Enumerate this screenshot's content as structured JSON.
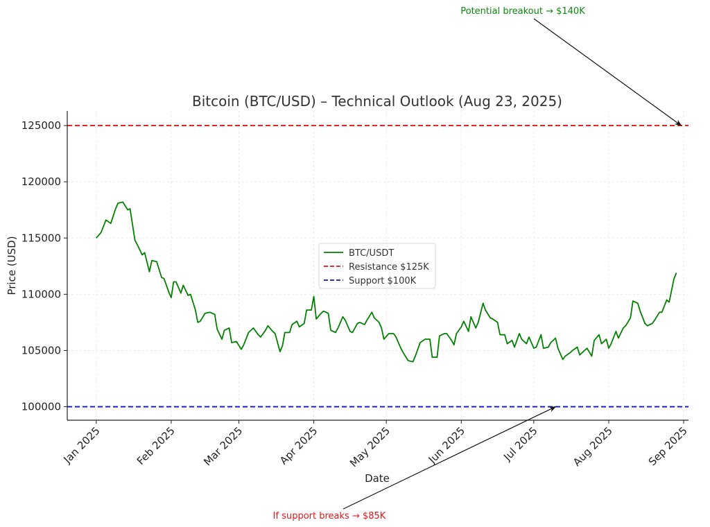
{
  "chart_data": {
    "type": "line",
    "title": "Bitcoin (BTC/USD) – Technical Outlook (Aug 23, 2025)",
    "xlabel": "Date",
    "ylabel": "Price (USD)",
    "x_ticks": [
      "Jan 2025",
      "Feb 2025",
      "Mar 2025",
      "Apr 2025",
      "May 2025",
      "Jun 2025",
      "Jul 2025",
      "Aug 2025",
      "Sep 2025"
    ],
    "x_tick_dates": [
      "2025-01-01",
      "2025-02-01",
      "2025-03-01",
      "2025-04-01",
      "2025-05-01",
      "2025-06-01",
      "2025-07-01",
      "2025-08-01",
      "2025-09-01"
    ],
    "xlim": [
      "2024-12-20",
      "2025-09-03"
    ],
    "y_ticks": [
      100000,
      105000,
      110000,
      115000,
      120000,
      125000
    ],
    "ylim": [
      98800,
      126300
    ],
    "grid": true,
    "legend_position": "center",
    "series": [
      {
        "name": "BTC/USDT",
        "color": "#008000",
        "style": "solid",
        "points": [
          [
            "2025-01-01",
            115000
          ],
          [
            "2025-01-03",
            115500
          ],
          [
            "2025-01-05",
            116600
          ],
          [
            "2025-01-07",
            116300
          ],
          [
            "2025-01-09",
            117600
          ],
          [
            "2025-01-10",
            118100
          ],
          [
            "2025-01-12",
            118200
          ],
          [
            "2025-01-14",
            117500
          ],
          [
            "2025-01-15",
            117600
          ],
          [
            "2025-01-17",
            114800
          ],
          [
            "2025-01-18",
            114400
          ],
          [
            "2025-01-20",
            113500
          ],
          [
            "2025-01-21",
            113700
          ],
          [
            "2025-01-23",
            112000
          ],
          [
            "2025-01-24",
            113000
          ],
          [
            "2025-01-26",
            112900
          ],
          [
            "2025-01-28",
            111500
          ],
          [
            "2025-01-29",
            111400
          ],
          [
            "2025-01-31",
            110200
          ],
          [
            "2025-02-01",
            109700
          ],
          [
            "2025-02-02",
            111100
          ],
          [
            "2025-02-03",
            111100
          ],
          [
            "2025-02-05",
            110100
          ],
          [
            "2025-02-06",
            110800
          ],
          [
            "2025-02-08",
            109900
          ],
          [
            "2025-02-09",
            110000
          ],
          [
            "2025-02-11",
            108600
          ],
          [
            "2025-02-12",
            107500
          ],
          [
            "2025-02-13",
            107600
          ],
          [
            "2025-02-15",
            108300
          ],
          [
            "2025-02-17",
            108400
          ],
          [
            "2025-02-19",
            108200
          ],
          [
            "2025-02-20",
            106900
          ],
          [
            "2025-02-22",
            106000
          ],
          [
            "2025-02-23",
            106800
          ],
          [
            "2025-02-25",
            107000
          ],
          [
            "2025-02-26",
            105700
          ],
          [
            "2025-02-28",
            105800
          ],
          [
            "2025-03-02",
            105100
          ],
          [
            "2025-03-03",
            105500
          ],
          [
            "2025-03-05",
            106600
          ],
          [
            "2025-03-07",
            107000
          ],
          [
            "2025-03-09",
            106400
          ],
          [
            "2025-03-10",
            106200
          ],
          [
            "2025-03-12",
            106800
          ],
          [
            "2025-03-13",
            107200
          ],
          [
            "2025-03-15",
            106700
          ],
          [
            "2025-03-16",
            106500
          ],
          [
            "2025-03-18",
            104900
          ],
          [
            "2025-03-19",
            105400
          ],
          [
            "2025-03-20",
            106600
          ],
          [
            "2025-03-22",
            106600
          ],
          [
            "2025-03-23",
            107300
          ],
          [
            "2025-03-25",
            107600
          ],
          [
            "2025-03-26",
            107100
          ],
          [
            "2025-03-28",
            107400
          ],
          [
            "2025-03-29",
            108600
          ],
          [
            "2025-03-31",
            108600
          ],
          [
            "2025-04-01",
            109800
          ],
          [
            "2025-04-02",
            107800
          ],
          [
            "2025-04-04",
            108300
          ],
          [
            "2025-04-05",
            108500
          ],
          [
            "2025-04-07",
            108300
          ],
          [
            "2025-04-08",
            106800
          ],
          [
            "2025-04-10",
            106600
          ],
          [
            "2025-04-11",
            107000
          ],
          [
            "2025-04-13",
            108000
          ],
          [
            "2025-04-14",
            107700
          ],
          [
            "2025-04-16",
            106700
          ],
          [
            "2025-04-17",
            106600
          ],
          [
            "2025-04-19",
            107400
          ],
          [
            "2025-04-20",
            107500
          ],
          [
            "2025-04-22",
            107300
          ],
          [
            "2025-04-23",
            107700
          ],
          [
            "2025-04-25",
            108400
          ],
          [
            "2025-04-26",
            107900
          ],
          [
            "2025-04-28",
            107500
          ],
          [
            "2025-04-29",
            107000
          ],
          [
            "2025-04-30",
            106000
          ],
          [
            "2025-05-02",
            106500
          ],
          [
            "2025-05-04",
            106500
          ],
          [
            "2025-05-05",
            106200
          ],
          [
            "2025-05-07",
            105200
          ],
          [
            "2025-05-08",
            104800
          ],
          [
            "2025-05-10",
            104100
          ],
          [
            "2025-05-12",
            104000
          ],
          [
            "2025-05-13",
            104500
          ],
          [
            "2025-05-15",
            105700
          ],
          [
            "2025-05-17",
            106000
          ],
          [
            "2025-05-19",
            106000
          ],
          [
            "2025-05-20",
            104400
          ],
          [
            "2025-05-22",
            104400
          ],
          [
            "2025-05-23",
            106300
          ],
          [
            "2025-05-25",
            106500
          ],
          [
            "2025-05-26",
            106500
          ],
          [
            "2025-05-28",
            105900
          ],
          [
            "2025-05-29",
            105500
          ],
          [
            "2025-05-30",
            106500
          ],
          [
            "2025-06-01",
            107100
          ],
          [
            "2025-06-02",
            107600
          ],
          [
            "2025-06-04",
            106700
          ],
          [
            "2025-06-05",
            108000
          ],
          [
            "2025-06-07",
            107000
          ],
          [
            "2025-06-08",
            107500
          ],
          [
            "2025-06-10",
            109200
          ],
          [
            "2025-06-11",
            108600
          ],
          [
            "2025-06-13",
            107900
          ],
          [
            "2025-06-14",
            107800
          ],
          [
            "2025-06-16",
            107500
          ],
          [
            "2025-06-17",
            106400
          ],
          [
            "2025-06-19",
            106400
          ],
          [
            "2025-06-20",
            105600
          ],
          [
            "2025-06-22",
            105900
          ],
          [
            "2025-06-23",
            105300
          ],
          [
            "2025-06-25",
            106500
          ],
          [
            "2025-06-26",
            106000
          ],
          [
            "2025-06-28",
            105600
          ],
          [
            "2025-06-29",
            106200
          ],
          [
            "2025-07-01",
            105200
          ],
          [
            "2025-07-02",
            105300
          ],
          [
            "2025-07-04",
            106400
          ],
          [
            "2025-07-05",
            105200
          ],
          [
            "2025-07-07",
            105300
          ],
          [
            "2025-07-08",
            105700
          ],
          [
            "2025-07-10",
            106100
          ],
          [
            "2025-07-11",
            105200
          ],
          [
            "2025-07-13",
            104200
          ],
          [
            "2025-07-14",
            104500
          ],
          [
            "2025-07-16",
            104800
          ],
          [
            "2025-07-17",
            105000
          ],
          [
            "2025-07-19",
            105300
          ],
          [
            "2025-07-20",
            104600
          ],
          [
            "2025-07-22",
            105000
          ],
          [
            "2025-07-23",
            105200
          ],
          [
            "2025-07-25",
            104500
          ],
          [
            "2025-07-26",
            105900
          ],
          [
            "2025-07-28",
            106400
          ],
          [
            "2025-07-29",
            105600
          ],
          [
            "2025-07-31",
            106000
          ],
          [
            "2025-08-01",
            105200
          ],
          [
            "2025-08-02",
            105600
          ],
          [
            "2025-08-04",
            106700
          ],
          [
            "2025-08-05",
            106100
          ],
          [
            "2025-08-07",
            107000
          ],
          [
            "2025-08-08",
            107200
          ],
          [
            "2025-08-10",
            107900
          ],
          [
            "2025-08-11",
            109400
          ],
          [
            "2025-08-13",
            109200
          ],
          [
            "2025-08-14",
            108500
          ],
          [
            "2025-08-16",
            107400
          ],
          [
            "2025-08-17",
            107200
          ],
          [
            "2025-08-19",
            107400
          ],
          [
            "2025-08-20",
            107700
          ],
          [
            "2025-08-22",
            108400
          ],
          [
            "2025-08-23",
            108400
          ],
          [
            "2025-08-25",
            109500
          ],
          [
            "2025-08-26",
            109300
          ],
          [
            "2025-08-28",
            111400
          ],
          [
            "2025-08-29",
            111900
          ]
        ]
      },
      {
        "name": "Resistance $125K",
        "color": "#e8141b",
        "style": "dashed",
        "y": 125000
      },
      {
        "name": "Support $100K",
        "color": "#1010d0",
        "style": "dashed",
        "y": 100000
      }
    ],
    "annotations": [
      {
        "text": "Potential breakout → $140K",
        "color": "#0a8a0a",
        "target_x": "2025-08-31",
        "target_y": 125000
      },
      {
        "text": "If support breaks → $85K",
        "color": "#e8141b",
        "target_x": "2025-07-10",
        "target_y": 100000
      }
    ]
  }
}
